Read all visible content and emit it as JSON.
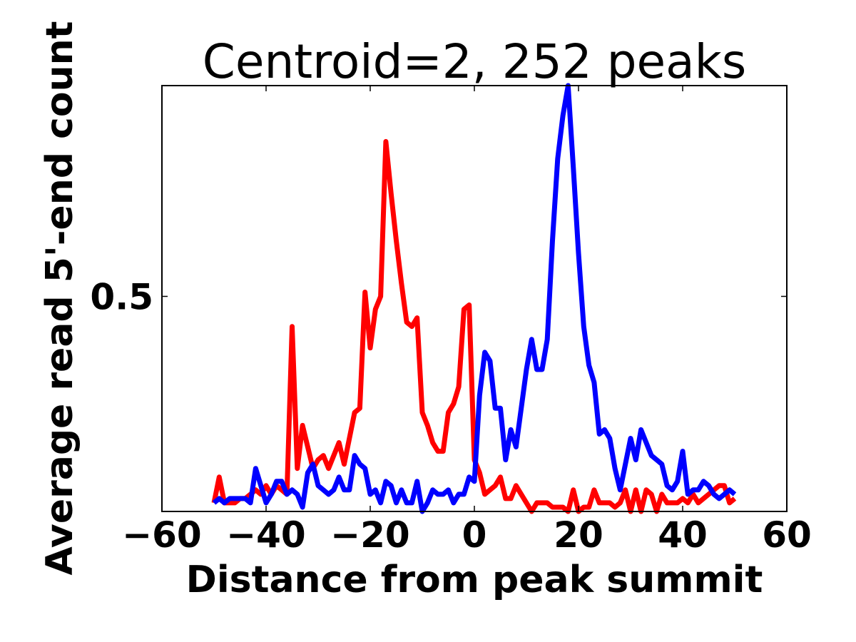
{
  "chart_data": {
    "type": "line",
    "title": "Centroid=2, 252 peaks",
    "xlabel": "Distance from peak summit",
    "ylabel": "Average read 5'-end count",
    "xlim": [
      -60,
      60
    ],
    "ylim": [
      0.0,
      0.99
    ],
    "x_ticks": [
      -60,
      -40,
      -20,
      0,
      20,
      40,
      60
    ],
    "x_tick_labels": [
      "−60",
      "−40",
      "−20",
      "0",
      "20",
      "40",
      "60"
    ],
    "y_ticks": [
      0.5
    ],
    "y_tick_labels": [
      "0.5"
    ],
    "grid": false,
    "legend": "none",
    "series": [
      {
        "color": "#ff0000",
        "points": [
          [
            -50,
            0.02
          ],
          [
            -49,
            0.08
          ],
          [
            -48,
            0.02
          ],
          [
            -47,
            0.02
          ],
          [
            -46,
            0.02
          ],
          [
            -45,
            0.03
          ],
          [
            -44,
            0.03
          ],
          [
            -43,
            0.04
          ],
          [
            -42,
            0.05
          ],
          [
            -41,
            0.04
          ],
          [
            -40,
            0.06
          ],
          [
            -39,
            0.04
          ],
          [
            -38,
            0.06
          ],
          [
            -37,
            0.05
          ],
          [
            -36,
            0.04
          ],
          [
            -35,
            0.43
          ],
          [
            -34,
            0.1
          ],
          [
            -33,
            0.2
          ],
          [
            -32,
            0.15
          ],
          [
            -31,
            0.1
          ],
          [
            -30,
            0.12
          ],
          [
            -29,
            0.13
          ],
          [
            -28,
            0.1
          ],
          [
            -27,
            0.13
          ],
          [
            -26,
            0.16
          ],
          [
            -25,
            0.11
          ],
          [
            -24,
            0.17
          ],
          [
            -23,
            0.23
          ],
          [
            -22,
            0.24
          ],
          [
            -21,
            0.51
          ],
          [
            -20,
            0.38
          ],
          [
            -19,
            0.47
          ],
          [
            -18,
            0.5
          ],
          [
            -17,
            0.86
          ],
          [
            -16,
            0.74
          ],
          [
            -15,
            0.63
          ],
          [
            -14,
            0.53
          ],
          [
            -13,
            0.44
          ],
          [
            -12,
            0.43
          ],
          [
            -11,
            0.45
          ],
          [
            -10,
            0.23
          ],
          [
            -9,
            0.2
          ],
          [
            -8,
            0.16
          ],
          [
            -7,
            0.14
          ],
          [
            -6,
            0.14
          ],
          [
            -5,
            0.23
          ],
          [
            -4,
            0.25
          ],
          [
            -3,
            0.29
          ],
          [
            -2,
            0.47
          ],
          [
            -1,
            0.48
          ],
          [
            0,
            0.12
          ],
          [
            1,
            0.09
          ],
          [
            2,
            0.04
          ],
          [
            3,
            0.05
          ],
          [
            4,
            0.06
          ],
          [
            5,
            0.08
          ],
          [
            6,
            0.03
          ],
          [
            7,
            0.03
          ],
          [
            8,
            0.06
          ],
          [
            9,
            0.04
          ],
          [
            10,
            0.02
          ],
          [
            11,
            0.0
          ],
          [
            12,
            0.02
          ],
          [
            13,
            0.02
          ],
          [
            14,
            0.02
          ],
          [
            15,
            0.01
          ],
          [
            16,
            0.01
          ],
          [
            17,
            0.01
          ],
          [
            18,
            0.0
          ],
          [
            19,
            0.05
          ],
          [
            20,
            0.0
          ],
          [
            21,
            0.01
          ],
          [
            22,
            0.01
          ],
          [
            23,
            0.05
          ],
          [
            24,
            0.02
          ],
          [
            25,
            0.02
          ],
          [
            26,
            0.02
          ],
          [
            27,
            0.01
          ],
          [
            28,
            0.02
          ],
          [
            29,
            0.05
          ],
          [
            30,
            0.0
          ],
          [
            31,
            0.05
          ],
          [
            32,
            0.0
          ],
          [
            33,
            0.05
          ],
          [
            34,
            0.04
          ],
          [
            35,
            0.0
          ],
          [
            36,
            0.04
          ],
          [
            37,
            0.02
          ],
          [
            38,
            0.02
          ],
          [
            39,
            0.02
          ],
          [
            40,
            0.03
          ],
          [
            41,
            0.02
          ],
          [
            42,
            0.04
          ],
          [
            43,
            0.02
          ],
          [
            44,
            0.03
          ],
          [
            45,
            0.04
          ],
          [
            46,
            0.05
          ],
          [
            47,
            0.06
          ],
          [
            48,
            0.06
          ],
          [
            49,
            0.02
          ],
          [
            50,
            0.03
          ]
        ]
      },
      {
        "color": "#0000ff",
        "points": [
          [
            -50,
            0.02
          ],
          [
            -49,
            0.03
          ],
          [
            -48,
            0.02
          ],
          [
            -47,
            0.03
          ],
          [
            -46,
            0.03
          ],
          [
            -45,
            0.03
          ],
          [
            -44,
            0.03
          ],
          [
            -43,
            0.02
          ],
          [
            -42,
            0.1
          ],
          [
            -41,
            0.06
          ],
          [
            -40,
            0.02
          ],
          [
            -39,
            0.04
          ],
          [
            -38,
            0.07
          ],
          [
            -37,
            0.07
          ],
          [
            -36,
            0.04
          ],
          [
            -35,
            0.05
          ],
          [
            -34,
            0.04
          ],
          [
            -33,
            0.01
          ],
          [
            -32,
            0.09
          ],
          [
            -31,
            0.11
          ],
          [
            -30,
            0.06
          ],
          [
            -29,
            0.05
          ],
          [
            -28,
            0.04
          ],
          [
            -27,
            0.05
          ],
          [
            -26,
            0.08
          ],
          [
            -25,
            0.05
          ],
          [
            -24,
            0.05
          ],
          [
            -23,
            0.13
          ],
          [
            -22,
            0.11
          ],
          [
            -21,
            0.1
          ],
          [
            -20,
            0.04
          ],
          [
            -19,
            0.05
          ],
          [
            -18,
            0.02
          ],
          [
            -17,
            0.07
          ],
          [
            -16,
            0.06
          ],
          [
            -15,
            0.02
          ],
          [
            -14,
            0.05
          ],
          [
            -13,
            0.02
          ],
          [
            -12,
            0.02
          ],
          [
            -11,
            0.07
          ],
          [
            -10,
            0.0
          ],
          [
            -9,
            0.02
          ],
          [
            -8,
            0.05
          ],
          [
            -7,
            0.04
          ],
          [
            -6,
            0.04
          ],
          [
            -5,
            0.05
          ],
          [
            -4,
            0.02
          ],
          [
            -3,
            0.04
          ],
          [
            -2,
            0.04
          ],
          [
            -1,
            0.08
          ],
          [
            0,
            0.07
          ],
          [
            1,
            0.27
          ],
          [
            2,
            0.37
          ],
          [
            3,
            0.35
          ],
          [
            4,
            0.24
          ],
          [
            5,
            0.24
          ],
          [
            6,
            0.12
          ],
          [
            7,
            0.19
          ],
          [
            8,
            0.15
          ],
          [
            9,
            0.24
          ],
          [
            10,
            0.33
          ],
          [
            11,
            0.4
          ],
          [
            12,
            0.33
          ],
          [
            13,
            0.33
          ],
          [
            14,
            0.4
          ],
          [
            15,
            0.63
          ],
          [
            16,
            0.82
          ],
          [
            17,
            0.92
          ],
          [
            18,
            0.99
          ],
          [
            19,
            0.8
          ],
          [
            20,
            0.6
          ],
          [
            21,
            0.43
          ],
          [
            22,
            0.34
          ],
          [
            23,
            0.3
          ],
          [
            24,
            0.18
          ],
          [
            25,
            0.19
          ],
          [
            26,
            0.17
          ],
          [
            27,
            0.1
          ],
          [
            28,
            0.05
          ],
          [
            29,
            0.11
          ],
          [
            30,
            0.17
          ],
          [
            31,
            0.12
          ],
          [
            32,
            0.19
          ],
          [
            33,
            0.16
          ],
          [
            34,
            0.13
          ],
          [
            35,
            0.12
          ],
          [
            36,
            0.11
          ],
          [
            37,
            0.06
          ],
          [
            38,
            0.05
          ],
          [
            39,
            0.07
          ],
          [
            40,
            0.14
          ],
          [
            41,
            0.04
          ],
          [
            42,
            0.05
          ],
          [
            43,
            0.05
          ],
          [
            44,
            0.07
          ],
          [
            45,
            0.06
          ],
          [
            46,
            0.04
          ],
          [
            47,
            0.03
          ],
          [
            48,
            0.04
          ],
          [
            49,
            0.05
          ],
          [
            50,
            0.04
          ]
        ]
      }
    ]
  }
}
